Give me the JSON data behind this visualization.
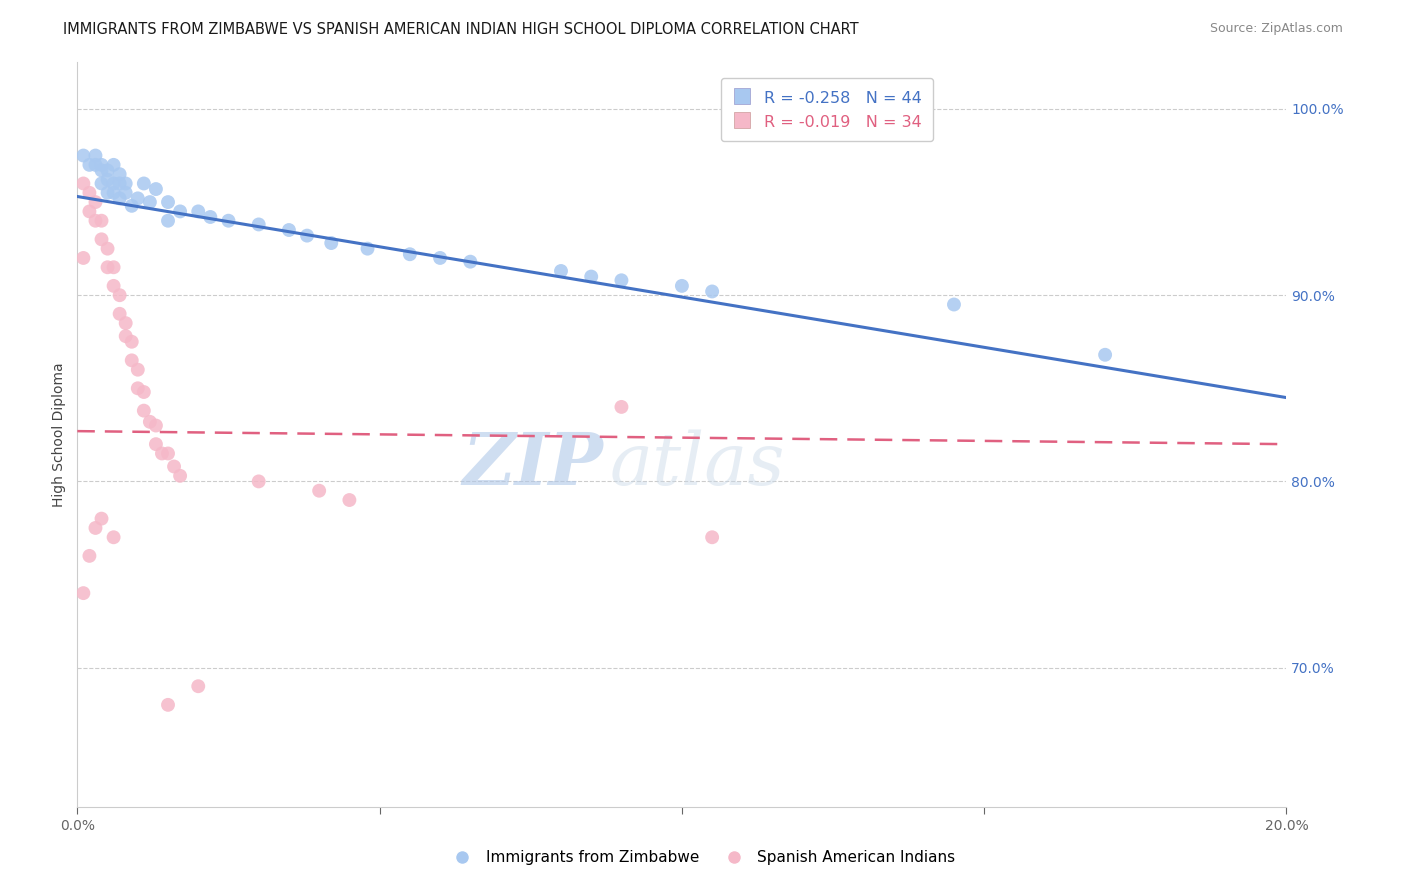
{
  "title": "IMMIGRANTS FROM ZIMBABWE VS SPANISH AMERICAN INDIAN HIGH SCHOOL DIPLOMA CORRELATION CHART",
  "source": "Source: ZipAtlas.com",
  "ylabel": "High School Diploma",
  "xlim": [
    0.0,
    0.2
  ],
  "ylim": [
    0.625,
    1.025
  ],
  "right_yticks": [
    0.7,
    0.8,
    0.9,
    1.0
  ],
  "right_yticklabels": [
    "70.0%",
    "80.0%",
    "90.0%",
    "100.0%"
  ],
  "xticks": [
    0.0,
    0.05,
    0.1,
    0.15,
    0.2
  ],
  "series1_label": "Immigrants from Zimbabwe",
  "series2_label": "Spanish American Indians",
  "series1_color": "#A8C8F0",
  "series2_color": "#F5B8C8",
  "series1_line_color": "#4472C4",
  "series2_line_color": "#E06080",
  "legend_r1": "R = -0.258",
  "legend_n1": "N = 44",
  "legend_r2": "R = -0.019",
  "legend_n2": "N = 34",
  "watermark_zip": "ZIP",
  "watermark_atlas": "atlas",
  "blue_dots_x": [
    0.001,
    0.002,
    0.003,
    0.003,
    0.004,
    0.004,
    0.004,
    0.005,
    0.005,
    0.005,
    0.006,
    0.006,
    0.006,
    0.007,
    0.007,
    0.007,
    0.008,
    0.008,
    0.009,
    0.01,
    0.011,
    0.012,
    0.013,
    0.015,
    0.015,
    0.017,
    0.02,
    0.022,
    0.025,
    0.03,
    0.035,
    0.038,
    0.042,
    0.048,
    0.055,
    0.06,
    0.065,
    0.08,
    0.085,
    0.09,
    0.1,
    0.105,
    0.145,
    0.17
  ],
  "blue_dots_y": [
    0.975,
    0.97,
    0.975,
    0.97,
    0.97,
    0.967,
    0.96,
    0.967,
    0.962,
    0.955,
    0.97,
    0.96,
    0.955,
    0.965,
    0.96,
    0.952,
    0.96,
    0.955,
    0.948,
    0.952,
    0.96,
    0.95,
    0.957,
    0.95,
    0.94,
    0.945,
    0.945,
    0.942,
    0.94,
    0.938,
    0.935,
    0.932,
    0.928,
    0.925,
    0.922,
    0.92,
    0.918,
    0.913,
    0.91,
    0.908,
    0.905,
    0.902,
    0.895,
    0.868
  ],
  "pink_dots_x": [
    0.001,
    0.001,
    0.002,
    0.002,
    0.003,
    0.003,
    0.004,
    0.004,
    0.005,
    0.005,
    0.006,
    0.006,
    0.007,
    0.007,
    0.008,
    0.008,
    0.009,
    0.009,
    0.01,
    0.01,
    0.011,
    0.011,
    0.012,
    0.013,
    0.013,
    0.014,
    0.015,
    0.016,
    0.017,
    0.03,
    0.04,
    0.045,
    0.09,
    0.105
  ],
  "pink_dots_y": [
    0.96,
    0.92,
    0.955,
    0.945,
    0.95,
    0.94,
    0.94,
    0.93,
    0.925,
    0.915,
    0.915,
    0.905,
    0.9,
    0.89,
    0.885,
    0.878,
    0.875,
    0.865,
    0.86,
    0.85,
    0.848,
    0.838,
    0.832,
    0.83,
    0.82,
    0.815,
    0.815,
    0.808,
    0.803,
    0.8,
    0.795,
    0.79,
    0.84,
    0.77
  ],
  "pink_outliers_x": [
    0.001,
    0.002,
    0.003,
    0.004,
    0.006,
    0.015,
    0.02
  ],
  "pink_outliers_y": [
    0.74,
    0.76,
    0.775,
    0.78,
    0.77,
    0.68,
    0.69
  ],
  "blue_trend_x0": 0.0,
  "blue_trend_x1": 0.2,
  "blue_trend_y0": 0.953,
  "blue_trend_y1": 0.845,
  "pink_trend_x0": 0.0,
  "pink_trend_x1": 0.2,
  "pink_trend_y0": 0.827,
  "pink_trend_y1": 0.82,
  "gridline_color": "#cccccc",
  "background_color": "#ffffff",
  "title_fontsize": 10.5,
  "axis_label_fontsize": 10,
  "tick_fontsize": 10,
  "marker_size": 100
}
